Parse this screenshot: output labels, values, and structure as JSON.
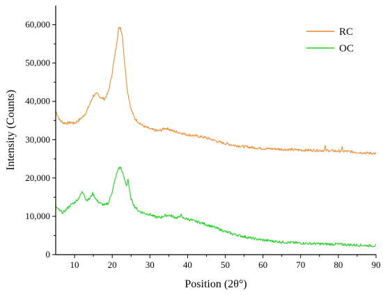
{
  "chart_data": {
    "type": "line",
    "title": "",
    "xlabel": "Position (2θ°)",
    "ylabel": "Intensity (Counts)",
    "xlim": [
      5,
      90
    ],
    "ylim": [
      0,
      65000
    ],
    "x_ticks": [
      10,
      20,
      30,
      40,
      50,
      60,
      70,
      80,
      90
    ],
    "x_tick_labels": [
      "10",
      "20",
      "30",
      "40",
      "50",
      "60",
      "70",
      "80",
      "90"
    ],
    "y_ticks": [
      0,
      10000,
      20000,
      30000,
      40000,
      50000,
      60000
    ],
    "y_tick_labels": [
      "0",
      "10,000",
      "20,000",
      "30,000",
      "40,000",
      "50,000",
      "60,000"
    ],
    "grid": false,
    "legend": "top-right",
    "series": [
      {
        "name": "RC",
        "color": "#f08a2c",
        "points": [
          [
            5,
            37500
          ],
          [
            6,
            35200
          ],
          [
            7,
            34400
          ],
          [
            8,
            34300
          ],
          [
            9,
            34500
          ],
          [
            10,
            34300
          ],
          [
            11,
            35000
          ],
          [
            12,
            35800
          ],
          [
            13,
            37000
          ],
          [
            14,
            39200
          ],
          [
            15,
            41500
          ],
          [
            16,
            42000
          ],
          [
            17,
            41000
          ],
          [
            18,
            40600
          ],
          [
            19,
            42500
          ],
          [
            20,
            47500
          ],
          [
            21,
            54000
          ],
          [
            21.7,
            59000
          ],
          [
            22.2,
            59300
          ],
          [
            22.7,
            57000
          ],
          [
            23.3,
            50000
          ],
          [
            24,
            43000
          ],
          [
            25,
            38000
          ],
          [
            26,
            35500
          ],
          [
            28,
            33700
          ],
          [
            30,
            32800
          ],
          [
            32,
            32300
          ],
          [
            33,
            32500
          ],
          [
            34,
            33000
          ],
          [
            35,
            32800
          ],
          [
            36,
            32300
          ],
          [
            38,
            31800
          ],
          [
            40,
            31300
          ],
          [
            42,
            31000
          ],
          [
            44,
            30700
          ],
          [
            46,
            30200
          ],
          [
            48,
            29500
          ],
          [
            50,
            29000
          ],
          [
            52,
            28600
          ],
          [
            55,
            28200
          ],
          [
            58,
            27900
          ],
          [
            60,
            27700
          ],
          [
            63,
            27600
          ],
          [
            65,
            27500
          ],
          [
            70,
            27300
          ],
          [
            75,
            27200
          ],
          [
            76.3,
            27200
          ],
          [
            76.5,
            28400
          ],
          [
            76.7,
            27200
          ],
          [
            78,
            27100
          ],
          [
            80.8,
            27000
          ],
          [
            81,
            27900
          ],
          [
            81.2,
            27000
          ],
          [
            83,
            26900
          ],
          [
            85,
            26700
          ],
          [
            88,
            26500
          ],
          [
            90,
            26400
          ]
        ]
      },
      {
        "name": "OC",
        "color": "#1fd11f",
        "points": [
          [
            5,
            12500
          ],
          [
            6,
            11500
          ],
          [
            7,
            10900
          ],
          [
            8,
            12000
          ],
          [
            9,
            13000
          ],
          [
            10,
            13600
          ],
          [
            11,
            14600
          ],
          [
            12,
            16300
          ],
          [
            12.5,
            16000
          ],
          [
            13,
            14300
          ],
          [
            14,
            14500
          ],
          [
            14.8,
            16000
          ],
          [
            15.5,
            14800
          ],
          [
            16,
            14000
          ],
          [
            17,
            13300
          ],
          [
            18,
            12900
          ],
          [
            19,
            13500
          ],
          [
            20,
            16500
          ],
          [
            21,
            20500
          ],
          [
            21.7,
            22600
          ],
          [
            22.3,
            22700
          ],
          [
            23,
            20500
          ],
          [
            23.8,
            18000
          ],
          [
            24.2,
            19800
          ],
          [
            24.5,
            17200
          ],
          [
            25,
            14600
          ],
          [
            26,
            12500
          ],
          [
            27,
            11400
          ],
          [
            28,
            11000
          ],
          [
            29,
            10700
          ],
          [
            30,
            10500
          ],
          [
            31,
            10000
          ],
          [
            32,
            9700
          ],
          [
            33,
            9800
          ],
          [
            34,
            10200
          ],
          [
            35,
            10300
          ],
          [
            36,
            10000
          ],
          [
            37,
            9600
          ],
          [
            37.9,
            9800
          ],
          [
            38.2,
            10800
          ],
          [
            38.5,
            9600
          ],
          [
            40,
            9300
          ],
          [
            42,
            8700
          ],
          [
            44,
            8200
          ],
          [
            46,
            7500
          ],
          [
            48,
            6800
          ],
          [
            50,
            6000
          ],
          [
            52,
            5400
          ],
          [
            55,
            4700
          ],
          [
            58,
            4100
          ],
          [
            60,
            3800
          ],
          [
            65,
            3300
          ],
          [
            70,
            3000
          ],
          [
            75,
            2800
          ],
          [
            80,
            2700
          ],
          [
            85,
            2500
          ],
          [
            90,
            2300
          ]
        ]
      }
    ]
  }
}
